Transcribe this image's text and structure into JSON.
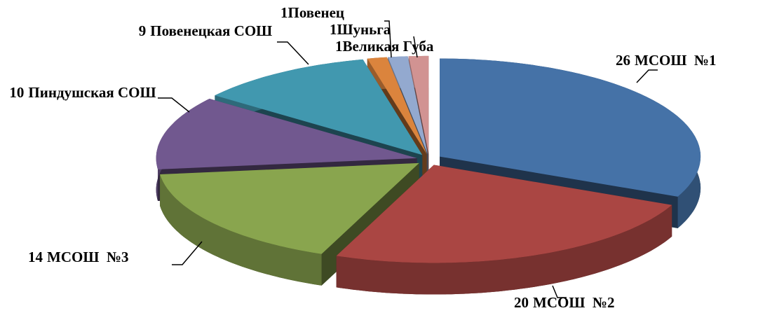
{
  "chart_data": {
    "type": "pie",
    "categories": [
      "МСОШ  №1",
      "МСОШ  №2",
      "МСОШ  №3",
      "Пиндушская СОШ",
      "Повенецкая СОШ",
      "Повенец",
      "Шуньга",
      "Великая Губа"
    ],
    "values": [
      26,
      20,
      14,
      10,
      9,
      1,
      1,
      1
    ],
    "colors": [
      "#4572a7",
      "#aa4643",
      "#89a54e",
      "#71588f",
      "#4198af",
      "#db843d",
      "#93a9cf",
      "#d19392"
    ]
  }
}
